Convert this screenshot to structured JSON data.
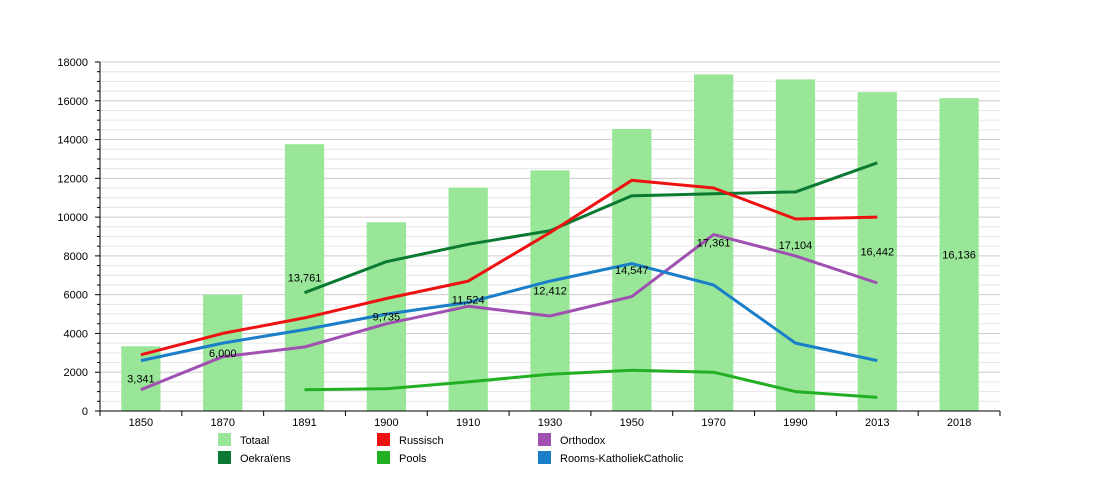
{
  "chart_data": {
    "type": "bar",
    "title": "",
    "xlabel": "",
    "ylabel": "",
    "ylim": [
      0,
      18000
    ],
    "y_ticks": [
      0,
      2000,
      4000,
      6000,
      8000,
      10000,
      12000,
      14000,
      16000,
      18000
    ],
    "grid": true,
    "legend_placement": "bottom",
    "categories": [
      "1850",
      "1870",
      "1891",
      "1900",
      "1910",
      "1930",
      "1950",
      "1970",
      "1990",
      "2013",
      "2018"
    ],
    "bar_series": {
      "name": "Totaal",
      "color": "#99e699",
      "values": [
        3341,
        6000,
        13761,
        9735,
        11524,
        12412,
        14547,
        17361,
        17104,
        16442,
        16136
      ],
      "labels": [
        "3,341",
        "6,000",
        "13,761",
        "9,735",
        "11,524",
        "12,412",
        "14,547",
        "17,361",
        "17,104",
        "16,442",
        "16,136"
      ]
    },
    "line_series": [
      {
        "name": "Oekraïens",
        "color": "#0a7a32",
        "points": [
          [
            2,
            6100
          ],
          [
            3,
            7700
          ],
          [
            4,
            8600
          ],
          [
            5,
            9300
          ],
          [
            6,
            11100
          ],
          [
            7,
            11200
          ],
          [
            8,
            11300
          ],
          [
            9,
            12800
          ]
        ]
      },
      {
        "name": "Russisch",
        "color": "#ee1111",
        "points": [
          [
            0,
            2900
          ],
          [
            1,
            4000
          ],
          [
            2,
            4800
          ],
          [
            3,
            5800
          ],
          [
            4,
            6700
          ],
          [
            5,
            9200
          ],
          [
            6,
            11900
          ],
          [
            7,
            11500
          ],
          [
            8,
            9900
          ],
          [
            9,
            10000
          ]
        ]
      },
      {
        "name": "Pools",
        "color": "#22b022",
        "points": [
          [
            2,
            1100
          ],
          [
            3,
            1150
          ],
          [
            4,
            1500
          ],
          [
            5,
            1900
          ],
          [
            6,
            2100
          ],
          [
            7,
            2000
          ],
          [
            8,
            1000
          ],
          [
            9,
            700
          ]
        ]
      },
      {
        "name": "Orthodox",
        "color": "#a050b0",
        "points": [
          [
            0,
            1100
          ],
          [
            1,
            2800
          ],
          [
            2,
            3300
          ],
          [
            3,
            4500
          ],
          [
            4,
            5400
          ],
          [
            5,
            4900
          ],
          [
            6,
            5900
          ],
          [
            7,
            9100
          ],
          [
            8,
            8000
          ],
          [
            9,
            6600
          ]
        ]
      },
      {
        "name": "Rooms-KatholiekCatholic",
        "color": "#1a7fc8",
        "points": [
          [
            0,
            2600
          ],
          [
            1,
            3500
          ],
          [
            2,
            4200
          ],
          [
            3,
            5000
          ],
          [
            4,
            5600
          ],
          [
            5,
            6700
          ],
          [
            6,
            7600
          ],
          [
            7,
            6500
          ],
          [
            8,
            3500
          ],
          [
            9,
            2600
          ]
        ]
      }
    ],
    "legend": [
      {
        "name": "Totaal",
        "color": "#99e699"
      },
      {
        "name": "Russisch",
        "color": "#ee1111"
      },
      {
        "name": "Orthodox",
        "color": "#a050b0"
      },
      {
        "name": "Oekraïens",
        "color": "#0a7a32"
      },
      {
        "name": "Pools",
        "color": "#22b022"
      },
      {
        "name": "Rooms-KatholiekCatholic",
        "color": "#1a7fc8"
      }
    ]
  }
}
